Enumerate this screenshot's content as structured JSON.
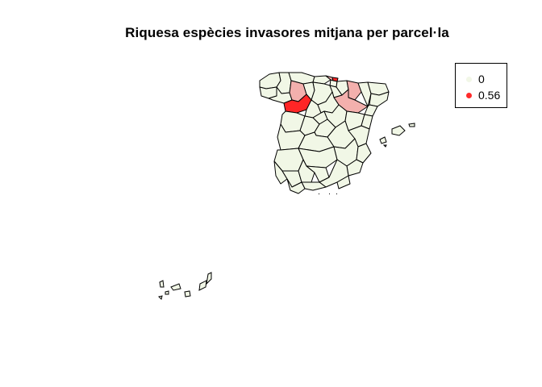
{
  "title": "Riquesa espècies invasores mitjana per parcel·la",
  "legend": {
    "items": [
      {
        "label": "0",
        "color": "#f2f7e7"
      },
      {
        "label": "0.56",
        "color": "#ff2b2b"
      }
    ]
  },
  "colors": {
    "zero": "#f1f7e6",
    "low": "#eac0b8",
    "mid": "#f3b0ad",
    "high": "#ff2626",
    "border": "#000000",
    "background": "#ffffff"
  }
}
